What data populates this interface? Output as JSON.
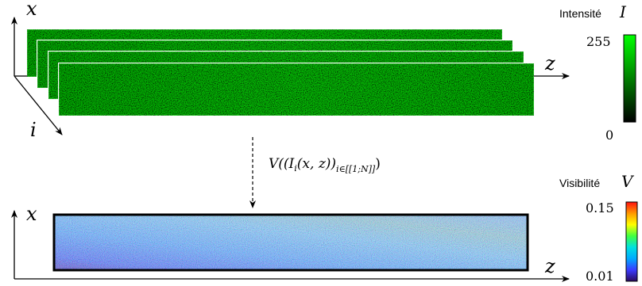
{
  "top": {
    "axis_x": "x",
    "axis_z": "z",
    "axis_i": "i",
    "colorbar": {
      "title": "Intensité",
      "symbol": "I",
      "max_label": "255",
      "min_label": "0",
      "colors": [
        "#000000",
        "#00ff00"
      ]
    }
  },
  "operator": {
    "formula_prefix": "V((I",
    "formula_sub_i": "i",
    "formula_mid": "(x, z))",
    "formula_sub_range": "i∈[[1;N]]",
    "formula_suffix": ")"
  },
  "bottom": {
    "axis_x": "x",
    "axis_z": "z",
    "colorbar": {
      "title": "Visibilité",
      "symbol": "V",
      "max_label": "0.15",
      "min_label": "0.01",
      "colors": [
        "#2a0a5e",
        "#3a3aff",
        "#00aaff",
        "#00e0e0",
        "#40ff40",
        "#ffff00",
        "#ff9900",
        "#ff1010"
      ]
    }
  }
}
